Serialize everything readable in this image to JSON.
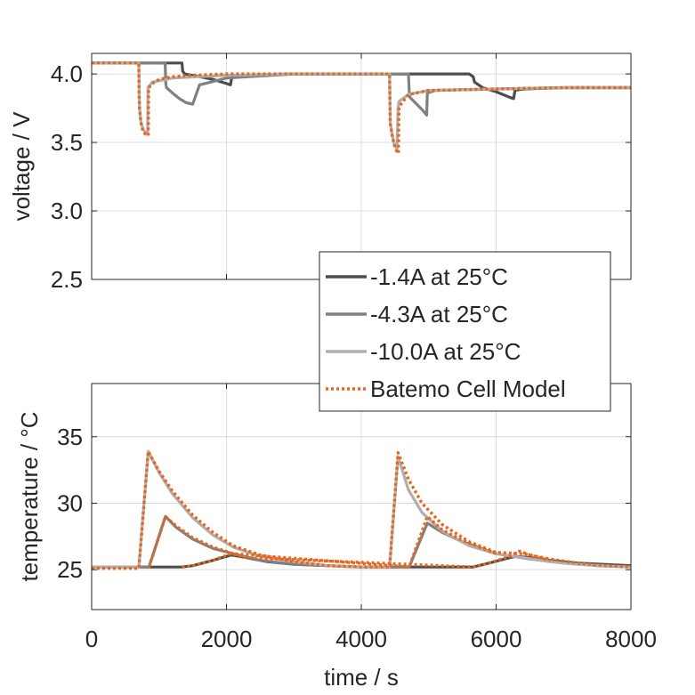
{
  "chart_data": [
    {
      "type": "line",
      "panel": "top",
      "title": "",
      "xlabel": "",
      "ylabel": "voltage / V",
      "xlim": [
        0,
        8000
      ],
      "ylim": [
        2.5,
        4.15
      ],
      "xticks": [
        0,
        2000,
        4000,
        6000,
        8000
      ],
      "xticklabels": [
        "",
        "",
        "",
        "",
        ""
      ],
      "yticks": [
        2.5,
        3.0,
        3.5,
        4.0
      ],
      "yticklabels": [
        "2.5",
        "3.0",
        "3.5",
        "4.0"
      ],
      "grid": true,
      "legend_position": "bottom-right",
      "series": [
        {
          "name": "-1.4A at 25°C",
          "color": "#4d4d4d",
          "style": "solid",
          "x": [
            0,
            1340,
            1350,
            1380,
            1600,
            1800,
            2000,
            2060,
            2080,
            2200,
            3000,
            4000,
            5000,
            5600,
            5660,
            5680,
            5800,
            6000,
            6200,
            6260,
            6280,
            6400,
            7000,
            8000
          ],
          "y": [
            4.08,
            4.08,
            4.02,
            4.0,
            3.98,
            3.96,
            3.93,
            3.92,
            3.98,
            3.99,
            4.0,
            4.0,
            4.0,
            4.0,
            3.98,
            3.94,
            3.9,
            3.87,
            3.83,
            3.82,
            3.88,
            3.89,
            3.9,
            3.9
          ]
        },
        {
          "name": "-4.3A at 25°C",
          "color": "#808080",
          "style": "solid",
          "x": [
            0,
            1090,
            1100,
            1110,
            1200,
            1300,
            1400,
            1500,
            1600,
            2000,
            3000,
            4000,
            4700,
            4710,
            4720,
            4800,
            4900,
            4970,
            4980,
            5100,
            6000,
            7000,
            8000
          ],
          "y": [
            4.08,
            4.08,
            3.93,
            3.9,
            3.86,
            3.82,
            3.79,
            3.78,
            3.92,
            3.97,
            4.0,
            4.0,
            4.0,
            3.88,
            3.83,
            3.79,
            3.74,
            3.7,
            3.86,
            3.88,
            3.89,
            3.9,
            3.9
          ]
        },
        {
          "name": "-10.0A at 25°C",
          "color": "#b0b0b0",
          "style": "solid",
          "x": [
            0,
            700,
            705,
            710,
            730,
            760,
            800,
            830,
            835,
            900,
            1200,
            2000,
            3000,
            4000,
            4420,
            4425,
            4430,
            4460,
            4490,
            4530,
            4545,
            4560,
            4700,
            5000,
            6000,
            7000,
            8000
          ],
          "y": [
            4.08,
            4.08,
            3.85,
            3.75,
            3.65,
            3.6,
            3.57,
            3.56,
            3.9,
            3.94,
            3.97,
            3.99,
            4.0,
            4.0,
            4.0,
            3.78,
            3.64,
            3.55,
            3.49,
            3.45,
            3.75,
            3.8,
            3.85,
            3.88,
            3.89,
            3.9,
            3.9
          ]
        },
        {
          "name": "Batemo Cell Model",
          "color": "#e8661d",
          "style": "dotted",
          "x": [
            0,
            700,
            705,
            710,
            730,
            760,
            800,
            840,
            845,
            900,
            1000,
            1200,
            1500,
            2000,
            2500,
            3000,
            4000,
            4420,
            4425,
            4430,
            4460,
            4490,
            4530,
            4550,
            4560,
            4700,
            5000,
            6000,
            7000,
            8000
          ],
          "y": [
            4.08,
            4.08,
            3.85,
            3.75,
            3.65,
            3.58,
            3.56,
            3.55,
            3.9,
            3.93,
            3.96,
            3.98,
            3.99,
            4.0,
            4.0,
            4.0,
            4.0,
            4.0,
            3.78,
            3.64,
            3.55,
            3.48,
            3.43,
            3.42,
            3.76,
            3.85,
            3.88,
            3.89,
            3.9,
            3.9
          ]
        }
      ]
    },
    {
      "type": "line",
      "panel": "bottom",
      "title": "",
      "xlabel": "time / s",
      "ylabel": "temperature / °C",
      "xlim": [
        0,
        8000
      ],
      "ylim": [
        22,
        39
      ],
      "xticks": [
        0,
        2000,
        4000,
        6000,
        8000
      ],
      "xticklabels": [
        "0",
        "2000",
        "4000",
        "6000",
        "8000"
      ],
      "yticks": [
        25,
        30,
        35
      ],
      "yticklabels": [
        "25",
        "30",
        "35"
      ],
      "grid": true,
      "series": [
        {
          "name": "-1.4A at 25°C",
          "color": "#4d4d4d",
          "style": "solid",
          "x": [
            0,
            1340,
            1500,
            1800,
            2070,
            2300,
            2600,
            3000,
            3500,
            4000,
            5000,
            5660,
            5900,
            6200,
            6300,
            6500,
            6800,
            7200,
            7600,
            8000
          ],
          "y": [
            25.2,
            25.2,
            25.3,
            25.7,
            26.1,
            25.9,
            25.6,
            25.4,
            25.3,
            25.2,
            25.2,
            25.2,
            25.5,
            25.9,
            26.0,
            25.9,
            25.7,
            25.5,
            25.4,
            25.3
          ]
        },
        {
          "name": "-4.3A at 25°C",
          "color": "#808080",
          "style": "solid",
          "x": [
            0,
            850,
            1095,
            1250,
            1500,
            1800,
            2100,
            2500,
            3000,
            3500,
            4000,
            4500,
            4710,
            4980,
            5200,
            5500,
            6000,
            6500,
            7000,
            7500,
            8000
          ],
          "y": [
            25.2,
            25.2,
            29.0,
            28.2,
            27.3,
            26.6,
            26.2,
            25.7,
            25.4,
            25.3,
            25.2,
            25.2,
            25.2,
            28.5,
            27.8,
            27.1,
            26.2,
            25.8,
            25.5,
            25.3,
            25.2
          ]
        },
        {
          "name": "-10.0A at 25°C",
          "color": "#b0b0b0",
          "style": "solid",
          "x": [
            0,
            700,
            840,
            1000,
            1200,
            1500,
            1800,
            2100,
            2500,
            3000,
            3500,
            4000,
            4420,
            4545,
            4700,
            4900,
            5200,
            5600,
            6000,
            6400,
            6800,
            7200,
            7600,
            8000
          ],
          "y": [
            25.2,
            25.2,
            33.9,
            32.3,
            30.7,
            28.9,
            27.6,
            26.7,
            26.0,
            25.6,
            25.3,
            25.2,
            25.2,
            33.5,
            31.0,
            29.3,
            27.9,
            26.8,
            26.2,
            25.9,
            25.6,
            25.4,
            25.3,
            25.2
          ]
        },
        {
          "name": "Batemo Cell Model",
          "color": "#e8661d",
          "style": "dotted",
          "x": [
            0,
            700,
            840,
            1000,
            1200,
            1500,
            1800,
            2100,
            2500,
            3000,
            3500,
            4000,
            4420,
            4545,
            4700,
            4900,
            5200,
            5600,
            6000,
            6400,
            6800,
            7200,
            7600,
            8000
          ],
          "y": [
            25.1,
            25.1,
            33.9,
            32.4,
            30.9,
            29.1,
            27.8,
            26.8,
            26.1,
            25.6,
            25.3,
            25.2,
            25.2,
            33.8,
            31.8,
            30.0,
            28.4,
            27.1,
            26.3,
            26.2,
            25.8,
            25.5,
            25.3,
            25.2
          ]
        },
        {
          "name": "Batemo Cell Model (mid)",
          "color": "#e8661d",
          "style": "dotted",
          "legend": false,
          "x": [
            850,
            1095,
            1250,
            1500,
            1800,
            2100,
            4710,
            4980,
            5200,
            5500,
            6000
          ],
          "y": [
            25.2,
            29.0,
            28.3,
            27.4,
            26.7,
            26.2,
            25.2,
            29.0,
            28.0,
            27.2,
            26.2
          ]
        },
        {
          "name": "Batemo Cell Model (low)",
          "color": "#e8661d",
          "style": "dotted",
          "legend": false,
          "x": [
            1340,
            1500,
            1800,
            2070,
            2300,
            5660,
            5900,
            6200,
            6350,
            6500,
            6800
          ],
          "y": [
            25.2,
            25.3,
            25.7,
            26.2,
            25.9,
            25.2,
            25.5,
            26.0,
            26.4,
            26.1,
            25.7
          ]
        }
      ]
    }
  ]
}
